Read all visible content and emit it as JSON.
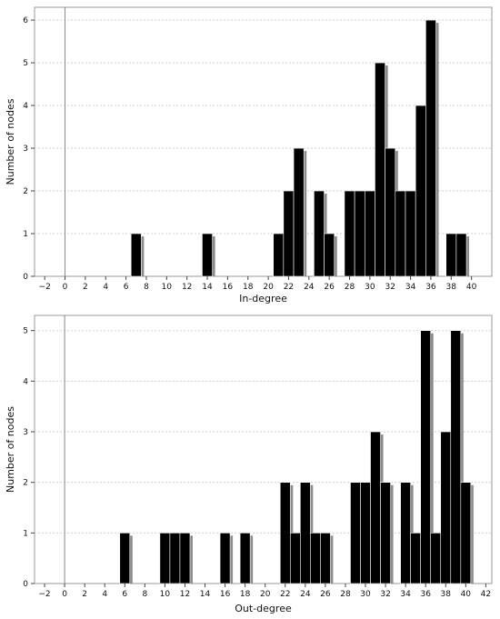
{
  "chart_data": [
    {
      "type": "bar",
      "xlabel": "In-degree",
      "ylabel": "Number of nodes",
      "xlim": [
        -3,
        42
      ],
      "ylim": [
        0,
        6.3
      ],
      "x_ticks": [
        -2,
        0,
        2,
        4,
        6,
        8,
        10,
        12,
        14,
        16,
        18,
        20,
        22,
        24,
        26,
        28,
        30,
        32,
        34,
        36,
        38,
        40
      ],
      "y_ticks": [
        0,
        1,
        2,
        3,
        4,
        5,
        6
      ],
      "grid": true,
      "x": [
        7,
        14,
        21,
        22,
        23,
        25,
        26,
        28,
        29,
        30,
        31,
        32,
        33,
        34,
        35,
        36,
        38,
        39
      ],
      "values": [
        1,
        1,
        1,
        2,
        3,
        2,
        1,
        2,
        2,
        2,
        5,
        3,
        2,
        2,
        4,
        6,
        1,
        1
      ]
    },
    {
      "type": "bar",
      "xlabel": "Out-degree",
      "ylabel": "Number of nodes",
      "xlim": [
        -3,
        42.6
      ],
      "ylim": [
        0,
        5.3
      ],
      "x_ticks": [
        -2,
        0,
        2,
        4,
        6,
        8,
        10,
        12,
        14,
        16,
        18,
        20,
        22,
        24,
        26,
        28,
        30,
        32,
        34,
        36,
        38,
        40,
        42
      ],
      "y_ticks": [
        0,
        1,
        2,
        3,
        4,
        5
      ],
      "grid": true,
      "x": [
        6,
        10,
        11,
        12,
        16,
        18,
        22,
        23,
        24,
        25,
        26,
        29,
        30,
        31,
        32,
        34,
        35,
        36,
        37,
        38,
        39,
        40
      ],
      "values": [
        1,
        1,
        1,
        1,
        1,
        1,
        2,
        1,
        2,
        1,
        1,
        2,
        2,
        3,
        2,
        2,
        1,
        5,
        1,
        3,
        5,
        2
      ]
    }
  ]
}
